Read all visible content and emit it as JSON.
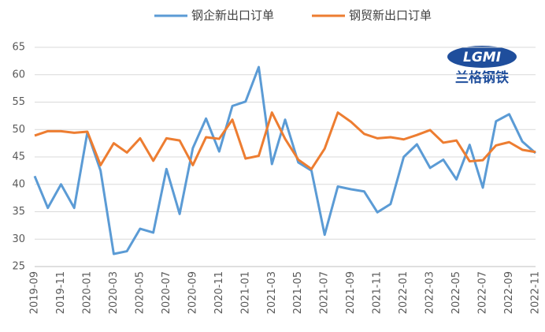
{
  "chart_data": {
    "type": "line",
    "categories": [
      "2019-09",
      null,
      "2019-11",
      null,
      "2020-01",
      null,
      "2020-03",
      null,
      "2020-05",
      null,
      "2020-07",
      null,
      "2020-09",
      null,
      "2020-11",
      null,
      "2021-01",
      null,
      "2021-03",
      null,
      "2021-05",
      null,
      "2021-07",
      null,
      "2021-09",
      null,
      "2021-11",
      null,
      "2022-01",
      null,
      "2022-03",
      null,
      "2022-05",
      null,
      "2022-07",
      null,
      "2022-09",
      null,
      "2022-11"
    ],
    "series": [
      {
        "name": "钢企新出口订单",
        "color": "#5b9bd5",
        "values": [
          41.5,
          35.7,
          40,
          35.7,
          49.5,
          42.5,
          27.3,
          27.8,
          31.9,
          31.2,
          42.8,
          34.6,
          46.6,
          52,
          46,
          54.3,
          55.1,
          61.4,
          43.7,
          51.8,
          44,
          42.5,
          30.8,
          39.6,
          39.1,
          38.7,
          34.9,
          36.4,
          45,
          47.3,
          43,
          44.5,
          40.9,
          47.2,
          39.4,
          51.5,
          52.8,
          47.8,
          45.7
        ]
      },
      {
        "name": "钢贸新出口订单",
        "color": "#ed7d31",
        "values": [
          48.9,
          49.7,
          49.7,
          49.4,
          49.6,
          43.5,
          47.5,
          45.8,
          48.4,
          44.3,
          48.4,
          48,
          43.5,
          48.6,
          48.3,
          51.8,
          44.7,
          45.2,
          53.1,
          48.3,
          44.5,
          42.8,
          46.5,
          53.1,
          51.4,
          49.2,
          48.4,
          48.6,
          48.2,
          49,
          49.9,
          47.6,
          48,
          44.2,
          44.4,
          47.1,
          47.7,
          46.3,
          45.9
        ]
      }
    ],
    "ylim": [
      25,
      65
    ],
    "yticks": [
      25,
      30,
      35,
      40,
      45,
      50,
      55,
      60,
      65
    ],
    "grid": true,
    "logo_text": "LGMI",
    "logo_subtitle": "兰格钢铁"
  }
}
